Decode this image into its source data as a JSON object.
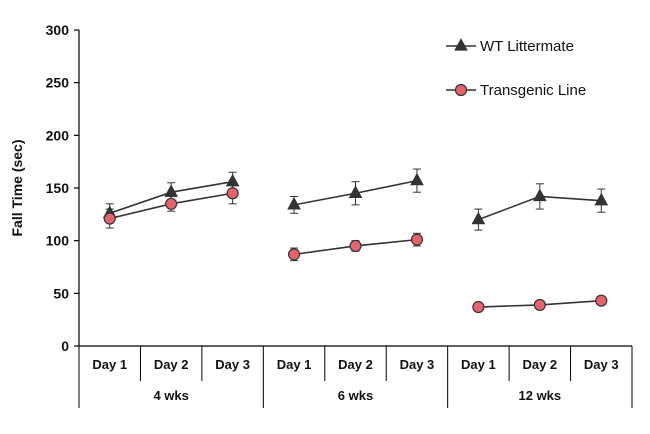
{
  "chart_data": {
    "type": "line",
    "ylabel": "Fall Time (sec)",
    "xlabel": "",
    "ylim": [
      0,
      300
    ],
    "yticks": [
      0,
      50,
      100,
      150,
      200,
      250,
      300
    ],
    "groups": [
      {
        "label": "4 wks",
        "categories": [
          "Day 1",
          "Day 2",
          "Day 3"
        ]
      },
      {
        "label": "6 wks",
        "categories": [
          "Day 1",
          "Day 2",
          "Day 3"
        ]
      },
      {
        "label": "12 wks",
        "categories": [
          "Day 1",
          "Day 2",
          "Day 3"
        ]
      }
    ],
    "series": [
      {
        "name": "WT Littermate",
        "marker": "triangle",
        "color": "#333333",
        "values": [
          [
            126,
            146,
            156
          ],
          [
            134,
            145,
            157
          ],
          [
            120,
            142,
            138
          ]
        ],
        "errors": [
          [
            9,
            9,
            9
          ],
          [
            8,
            11,
            11
          ],
          [
            10,
            12,
            11
          ]
        ]
      },
      {
        "name": "Transgenic Line",
        "marker": "circle",
        "color": "#e8626a",
        "values": [
          [
            121,
            135,
            145
          ],
          [
            87,
            95,
            101
          ],
          [
            37,
            39,
            43
          ]
        ],
        "errors": [
          [
            9,
            7,
            10
          ],
          [
            6,
            5,
            6
          ],
          [
            2,
            2,
            2
          ]
        ]
      }
    ],
    "legend_position": "top-right"
  }
}
